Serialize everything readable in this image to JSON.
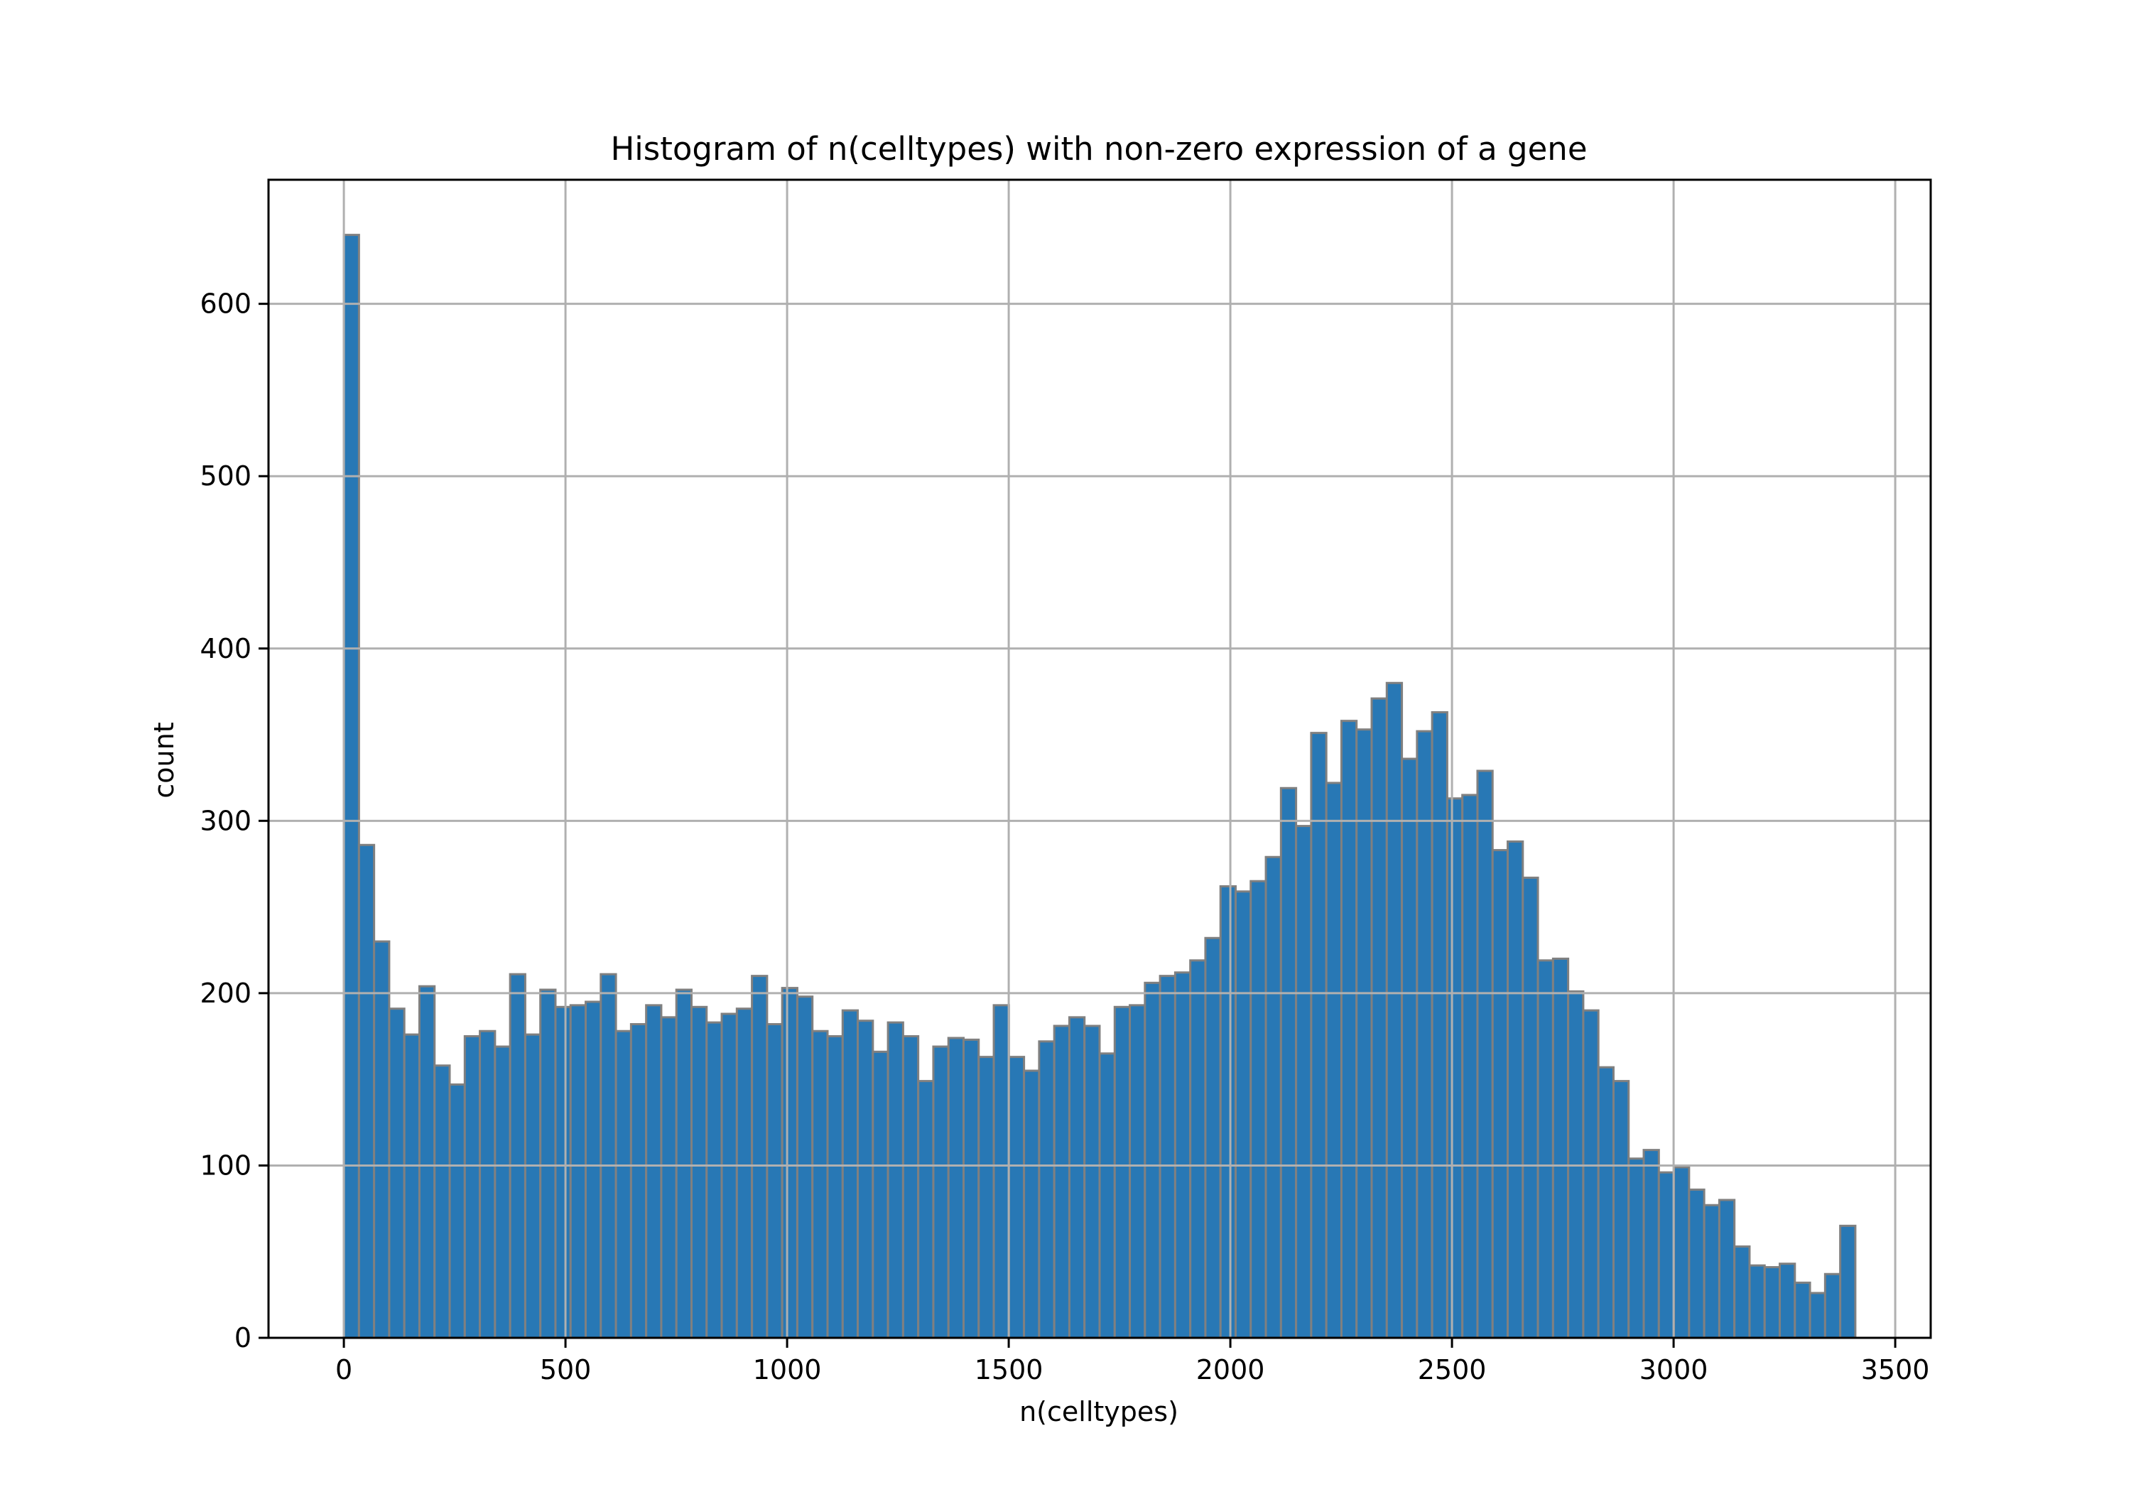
{
  "chart_data": {
    "type": "bar",
    "title": "Histogram of n(celltypes) with non-zero expression of a gene",
    "xlabel": "n(celltypes)",
    "ylabel": "count",
    "xlim": [
      -170,
      3580
    ],
    "ylim": [
      0,
      672
    ],
    "xticks": [
      0,
      500,
      1000,
      1500,
      2000,
      2500,
      3000,
      3500
    ],
    "yticks": [
      0,
      100,
      200,
      300,
      400,
      500,
      600
    ],
    "grid": true,
    "bin_start": 0,
    "bin_width": 34.1,
    "values": [
      640,
      286,
      230,
      191,
      176,
      204,
      158,
      147,
      175,
      178,
      169,
      211,
      176,
      202,
      192,
      193,
      195,
      211,
      178,
      182,
      193,
      186,
      202,
      192,
      183,
      188,
      191,
      210,
      182,
      203,
      198,
      178,
      175,
      190,
      184,
      166,
      183,
      175,
      149,
      169,
      174,
      173,
      163,
      193,
      163,
      155,
      172,
      181,
      186,
      181,
      165,
      192,
      193,
      206,
      210,
      212,
      219,
      232,
      262,
      259,
      265,
      279,
      319,
      297,
      351,
      322,
      358,
      353,
      371,
      380,
      336,
      352,
      363,
      313,
      315,
      329,
      283,
      288,
      267,
      219,
      220,
      201,
      190,
      157,
      149,
      104,
      109,
      96,
      99,
      86,
      77,
      80,
      53,
      42,
      41,
      43,
      32,
      26,
      37,
      65
    ],
    "bar_color": "#2878b5",
    "edge_color": "#808080",
    "grid_color": "#b0b0b0"
  }
}
